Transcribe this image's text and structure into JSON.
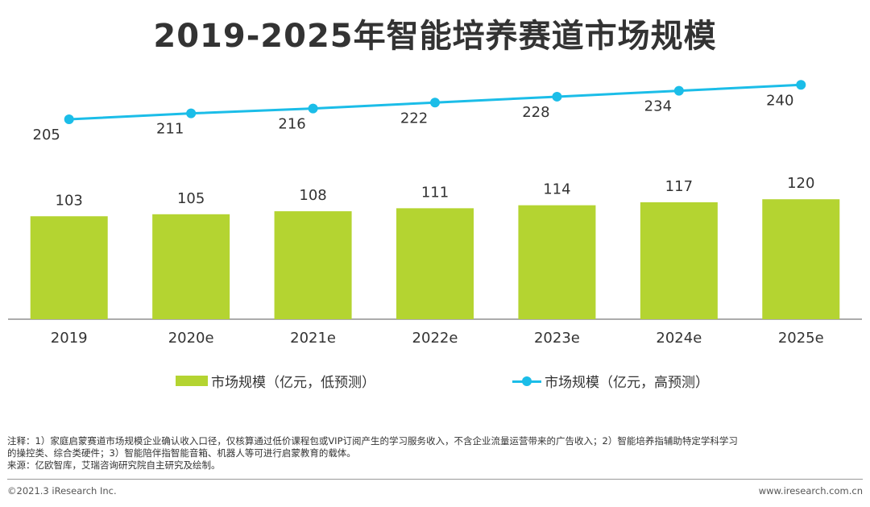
{
  "colors": {
    "bar": "#b4d431",
    "line": "#1bbde8",
    "text": "#333333",
    "axis": "#7a7a7a"
  },
  "chart_data": {
    "type": "bar",
    "title": "2019-2025年智能培养赛道市场规模",
    "categories": [
      "2019",
      "2020e",
      "2021e",
      "2022e",
      "2023e",
      "2024e",
      "2025e"
    ],
    "series": [
      {
        "name": "市场规模（亿元，低预测）",
        "type": "bar",
        "values": [
          103,
          105,
          108,
          111,
          114,
          117,
          120
        ]
      },
      {
        "name": "市场规模（亿元，高预测）",
        "type": "line",
        "values": [
          205,
          211,
          216,
          222,
          228,
          234,
          240
        ]
      }
    ],
    "xlabel": "",
    "ylabel": "",
    "grid": false,
    "legend_position": "bottom"
  },
  "notes": {
    "line1": "注释：1）家庭启蒙赛道市场规模企业确认收入口径，仅核算通过低价课程包或VIP订阅产生的学习服务收入，不含企业流量运营带来的广告收入；2）智能培养指辅助特定学科学习",
    "line2": "的操控类、综合类硬件；3）智能陪伴指智能音箱、机器人等可进行启蒙教育的载体。",
    "line3": "来源：亿欧智库，艾瑞咨询研究院自主研究及绘制。"
  },
  "footer": {
    "copyright": "©2021.3 iResearch Inc.",
    "website": "www.iresearch.com.cn"
  }
}
